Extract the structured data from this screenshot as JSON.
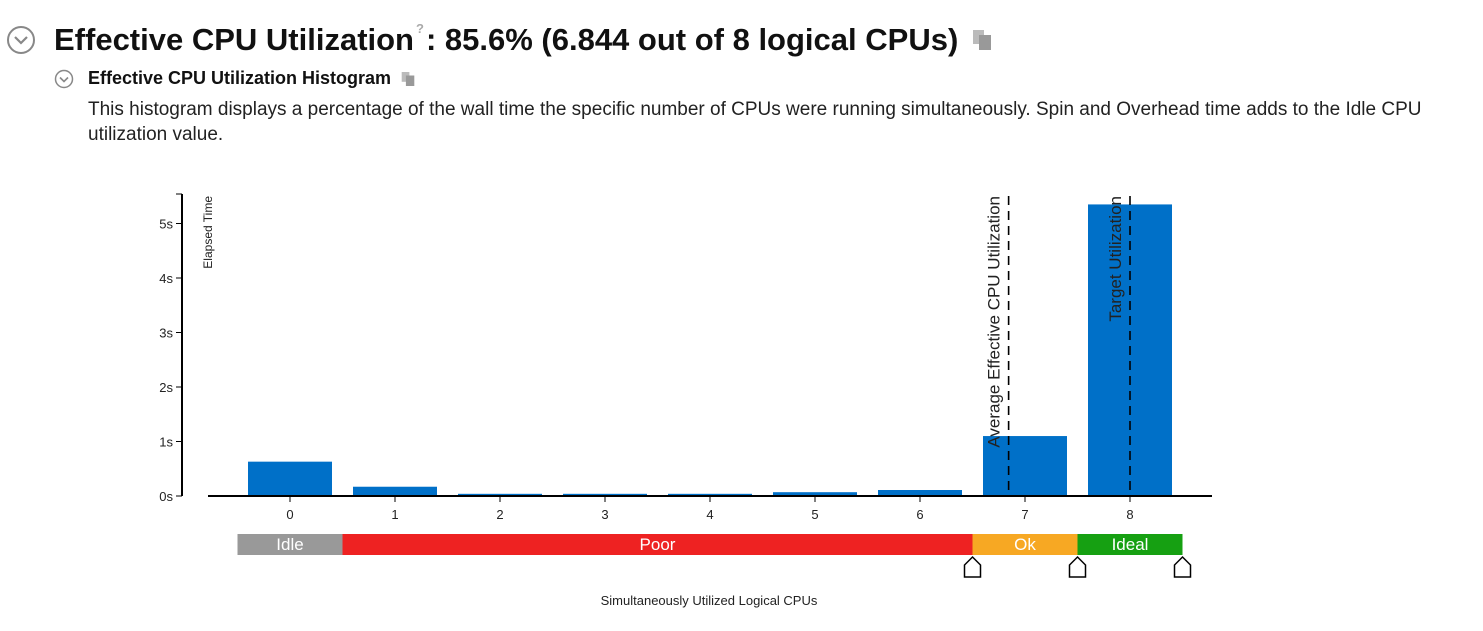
{
  "header": {
    "title": "Effective CPU Utilization",
    "help_symbol": "?",
    "value_text": ": 85.6% (6.844 out of 8 logical CPUs)"
  },
  "section": {
    "title": "Effective CPU Utilization Histogram",
    "description": "This histogram displays a percentage of the wall time the specific number of CPUs were running simultaneously. Spin and Overhead time adds to the Idle CPU utilization value."
  },
  "chart_data": {
    "type": "bar",
    "categories": [
      "0",
      "1",
      "2",
      "3",
      "4",
      "5",
      "6",
      "7",
      "8"
    ],
    "values": [
      0.63,
      0.17,
      0.04,
      0.04,
      0.04,
      0.07,
      0.11,
      1.1,
      5.35
    ],
    "ylabel": "Elapsed Time",
    "xlabel": "Simultaneously Utilized Logical CPUs",
    "yticks": [
      "0s",
      "1s",
      "2s",
      "3s",
      "4s",
      "5s"
    ],
    "ylim": [
      0,
      5.5
    ],
    "bar_color": "#0070c8",
    "markers": [
      {
        "label": "Average Effective CPU Utilization",
        "x": 6.844
      },
      {
        "label": "Target Utilization",
        "x": 8
      }
    ],
    "ranges": [
      {
        "label": "Idle",
        "from": -0.5,
        "to": 0.5,
        "color": "#999999"
      },
      {
        "label": "Poor",
        "from": 0.5,
        "to": 6.5,
        "color": "#ee2222"
      },
      {
        "label": "Ok",
        "from": 6.5,
        "to": 7.5,
        "color": "#f7a823"
      },
      {
        "label": "Ideal",
        "from": 7.5,
        "to": 8.5,
        "color": "#16a012"
      }
    ],
    "grid": false
  }
}
